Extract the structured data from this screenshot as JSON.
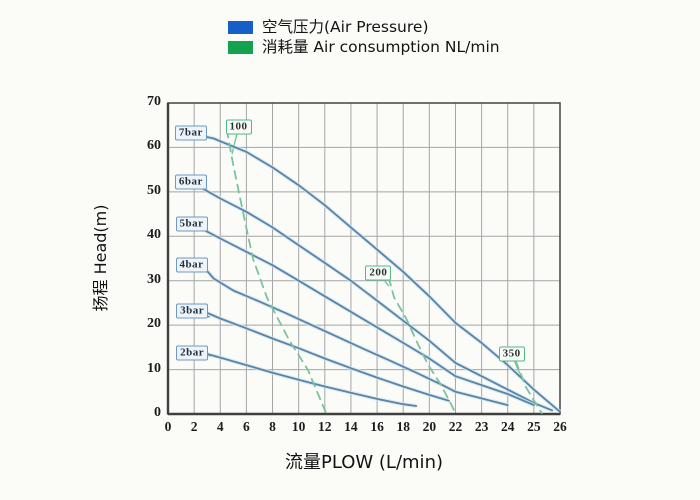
{
  "page": {
    "background": "#fbfbf8"
  },
  "legend": {
    "items": [
      {
        "name": "air-pressure",
        "swatch_color": "#1560c8",
        "label": "空气压力(Air Pressure)"
      },
      {
        "name": "air-consumption",
        "swatch_color": "#15a24f",
        "label": "消耗量 Air consumption NL/min"
      }
    ]
  },
  "chart_data": {
    "type": "line",
    "title": "",
    "xlabel": "流量PLOW (L/min)",
    "ylabel": "扬程 Head(m)",
    "x_ticks": [
      0,
      2,
      4,
      6,
      8,
      10,
      12,
      14,
      16,
      18,
      20,
      22,
      23,
      24,
      25,
      26
    ],
    "x_axis_note": "ticks evenly spaced on paper: step 2 from 0-22, step 1 from 22-26",
    "y_ticks": [
      0,
      10,
      20,
      30,
      40,
      50,
      60,
      70
    ],
    "ylim": [
      0,
      70
    ],
    "grid": true,
    "legend_position": "top",
    "colors": {
      "pressure_line": "#5b83a6",
      "pressure_halo": "#cfe6f2",
      "consumption_line": "#79c49a",
      "grid_line": "#a5a5a5",
      "frame": "#4d4d4d"
    },
    "series": [
      {
        "name": "7bar",
        "group": "air-pressure",
        "unit": "bar",
        "dashed": false,
        "points": [
          [
            2,
            63
          ],
          [
            3.5,
            62
          ],
          [
            6,
            59
          ],
          [
            8,
            55.5
          ],
          [
            10,
            51.5
          ],
          [
            12,
            47
          ],
          [
            14,
            42
          ],
          [
            16,
            37
          ],
          [
            18,
            32
          ],
          [
            20,
            26.5
          ],
          [
            22,
            20.5
          ],
          [
            23,
            16
          ],
          [
            24,
            11
          ],
          [
            25,
            5.5
          ],
          [
            26,
            0.5
          ]
        ]
      },
      {
        "name": "6bar",
        "group": "air-pressure",
        "unit": "bar",
        "dashed": false,
        "points": [
          [
            2.2,
            51.5
          ],
          [
            4,
            48.5
          ],
          [
            6,
            45.5
          ],
          [
            8,
            42
          ],
          [
            10,
            38
          ],
          [
            12,
            34
          ],
          [
            14,
            30
          ],
          [
            16,
            25.5
          ],
          [
            18,
            21
          ],
          [
            20,
            16.5
          ],
          [
            22,
            11.5
          ],
          [
            23,
            8.5
          ],
          [
            24,
            5.5
          ],
          [
            25,
            2.5
          ],
          [
            25.7,
            0.8
          ]
        ]
      },
      {
        "name": "5bar",
        "group": "air-pressure",
        "unit": "bar",
        "dashed": false,
        "points": [
          [
            2.4,
            42
          ],
          [
            4,
            39.5
          ],
          [
            6,
            36.5
          ],
          [
            8,
            33.5
          ],
          [
            10,
            30
          ],
          [
            12,
            26.5
          ],
          [
            14,
            23
          ],
          [
            16,
            19.5
          ],
          [
            18,
            16
          ],
          [
            20,
            12.5
          ],
          [
            22,
            8.5
          ],
          [
            23,
            6.5
          ],
          [
            24,
            4.5
          ],
          [
            25,
            2
          ]
        ]
      },
      {
        "name": "4bar",
        "group": "air-pressure",
        "unit": "bar",
        "dashed": false,
        "points": [
          [
            2.6,
            33.5
          ],
          [
            3.5,
            30.5
          ],
          [
            5,
            27.8
          ],
          [
            7,
            25.3
          ],
          [
            9,
            22.7
          ],
          [
            11,
            20
          ],
          [
            13,
            17.3
          ],
          [
            15,
            14.6
          ],
          [
            17,
            12
          ],
          [
            19,
            9.3
          ],
          [
            21,
            6.5
          ],
          [
            22,
            5
          ],
          [
            23,
            3.5
          ],
          [
            24,
            2
          ]
        ]
      },
      {
        "name": "3bar",
        "group": "air-pressure",
        "unit": "bar",
        "dashed": false,
        "points": [
          [
            2.8,
            23
          ],
          [
            4,
            21.5
          ],
          [
            6,
            19.3
          ],
          [
            8,
            17
          ],
          [
            10,
            14.8
          ],
          [
            12,
            12.5
          ],
          [
            14,
            10.3
          ],
          [
            16,
            8.2
          ],
          [
            18,
            6.2
          ],
          [
            20,
            4.3
          ],
          [
            21.5,
            3
          ]
        ]
      },
      {
        "name": "2bar",
        "group": "air-pressure",
        "unit": "bar",
        "dashed": false,
        "points": [
          [
            3,
            13.5
          ],
          [
            4,
            12.7
          ],
          [
            6,
            11
          ],
          [
            8,
            9.3
          ],
          [
            10,
            7.7
          ],
          [
            12,
            6.2
          ],
          [
            14,
            4.8
          ],
          [
            16,
            3.4
          ],
          [
            18,
            2.2
          ],
          [
            19,
            1.8
          ]
        ]
      },
      {
        "name": "100",
        "group": "air-consumption",
        "unit": "NL/min",
        "dashed": true,
        "points": [
          [
            4.5,
            64
          ],
          [
            5,
            56
          ],
          [
            5.7,
            46
          ],
          [
            6.5,
            35
          ],
          [
            7.6,
            26
          ],
          [
            9.3,
            16.5
          ],
          [
            10.7,
            10
          ],
          [
            12.1,
            0.2
          ]
        ]
      },
      {
        "name": "200",
        "group": "air-consumption",
        "unit": "NL/min",
        "dashed": true,
        "points": [
          [
            16.9,
            30.7
          ],
          [
            17.3,
            26.2
          ],
          [
            18.2,
            21.7
          ],
          [
            19,
            16.5
          ],
          [
            19.9,
            11.1
          ],
          [
            20.9,
            6.5
          ],
          [
            21.7,
            2
          ],
          [
            22,
            0.2
          ]
        ]
      },
      {
        "name": "350",
        "group": "air-consumption",
        "unit": "NL/min",
        "dashed": true,
        "points": [
          [
            24.3,
            12
          ],
          [
            24.7,
            6
          ],
          [
            25.3,
            0.2
          ]
        ]
      }
    ],
    "curve_labels": [
      {
        "text": "7bar",
        "kind": "pressure",
        "x": 1.75,
        "y": 63.3,
        "ax": 3.0,
        "ay": 62.0
      },
      {
        "text": "6bar",
        "kind": "pressure",
        "x": 1.75,
        "y": 52.3,
        "ax": 3.0,
        "ay": 50.5
      },
      {
        "text": "5bar",
        "kind": "pressure",
        "x": 1.8,
        "y": 42.8,
        "ax": 3.1,
        "ay": 40.8
      },
      {
        "text": "4bar",
        "kind": "pressure",
        "x": 1.8,
        "y": 33.6,
        "ax": 3.0,
        "ay": 32.0
      },
      {
        "text": "3bar",
        "kind": "pressure",
        "x": 1.85,
        "y": 23.2,
        "ax": 3.2,
        "ay": 21.8
      },
      {
        "text": "2bar",
        "kind": "pressure",
        "x": 1.85,
        "y": 13.8,
        "ax": 3.3,
        "ay": 13.0
      },
      {
        "text": "100",
        "kind": "consumption",
        "x": 5.4,
        "y": 64.6,
        "ax": 4.9,
        "ay": 58.5
      },
      {
        "text": "200",
        "kind": "consumption",
        "x": 16.1,
        "y": 31.8,
        "ax": 16.9,
        "ay": 28.8
      },
      {
        "text": "350",
        "kind": "consumption",
        "x": 24.15,
        "y": 13.5,
        "ax": 24.5,
        "ay": 8.5
      }
    ]
  }
}
